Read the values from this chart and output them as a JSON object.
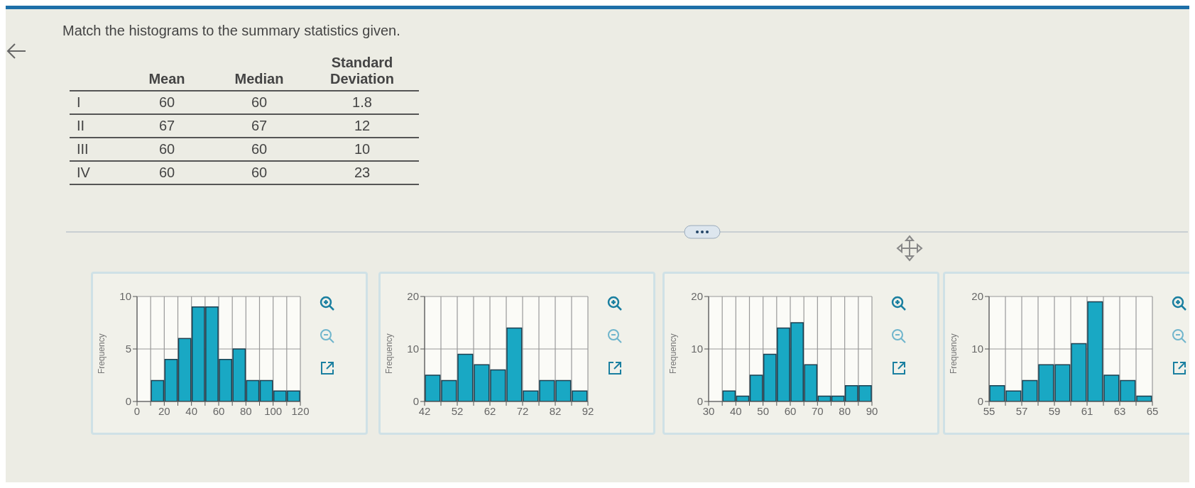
{
  "chart_data": [
    {
      "type": "other",
      "title": "Match the histograms to the summary statistics given.",
      "categories": [
        "I",
        "II",
        "III",
        "IV"
      ],
      "series": [
        {
          "name": "Mean",
          "values": [
            60,
            67,
            60,
            60
          ]
        },
        {
          "name": "Median",
          "values": [
            60,
            67,
            60,
            60
          ]
        },
        {
          "name": "Standard Deviation",
          "values": [
            1.8,
            12,
            10,
            23
          ]
        }
      ],
      "data_labels": true
    },
    {
      "type": "histogram",
      "ylabel": "Frequency",
      "color": "#19a8c4",
      "bins": [
        0,
        10,
        20,
        30,
        40,
        50,
        60,
        70,
        80,
        90,
        100,
        110,
        120
      ],
      "values": [
        0,
        2,
        4,
        6,
        9,
        9,
        4,
        5,
        2,
        2,
        1,
        1
      ],
      "xlim": [
        0,
        120
      ],
      "ylim": [
        0,
        10
      ],
      "xticks": [
        0,
        {
          "value": 10,
          "label": null
        },
        20,
        {
          "value": 30,
          "label": null
        },
        40,
        {
          "value": 50,
          "label": null
        },
        60,
        {
          "value": 70,
          "label": null
        },
        80,
        {
          "value": 90,
          "label": null
        },
        100,
        {
          "value": 110,
          "label": null
        },
        120
      ],
      "yticks": [
        0,
        5,
        10
      ],
      "grid": true
    },
    {
      "type": "histogram",
      "ylabel": "Frequency",
      "color": "#19a8c4",
      "bins": [
        42,
        47,
        52,
        57,
        62,
        67,
        72,
        77,
        82,
        87,
        92
      ],
      "values": [
        5,
        4,
        9,
        7,
        6,
        14,
        2,
        4,
        4,
        2
      ],
      "xlim": [
        42,
        92
      ],
      "ylim": [
        0,
        20
      ],
      "xticks": [
        42,
        {
          "value": 47,
          "label": null
        },
        52,
        {
          "value": 57,
          "label": null
        },
        62,
        {
          "value": 67,
          "label": null
        },
        72,
        {
          "value": 77,
          "label": null
        },
        82,
        {
          "value": 87,
          "label": null
        },
        92
      ],
      "yticks": [
        0,
        10,
        20
      ],
      "grid": true
    },
    {
      "type": "histogram",
      "ylabel": "Frequency",
      "color": "#19a8c4",
      "bins": [
        30,
        35,
        40,
        45,
        50,
        55,
        60,
        65,
        70,
        75,
        80,
        85,
        90
      ],
      "values": [
        0,
        2,
        1,
        5,
        9,
        14,
        15,
        7,
        1,
        1,
        3,
        3
      ],
      "xlim": [
        30,
        90
      ],
      "ylim": [
        0,
        20
      ],
      "xticks": [
        30,
        {
          "value": 35,
          "label": null
        },
        40,
        {
          "value": 45,
          "label": null
        },
        50,
        {
          "value": 55,
          "label": null
        },
        60,
        {
          "value": 65,
          "label": null
        },
        70,
        {
          "value": 75,
          "label": null
        },
        80,
        {
          "value": 85,
          "label": null
        },
        90
      ],
      "yticks": [
        0,
        10,
        20
      ],
      "grid": true
    },
    {
      "type": "histogram",
      "ylabel": "Frequency",
      "color": "#19a8c4",
      "bins": [
        55,
        56,
        57,
        58,
        59,
        60,
        61,
        62,
        63,
        64,
        65
      ],
      "values": [
        3,
        2,
        4,
        7,
        7,
        11,
        19,
        5,
        4,
        1
      ],
      "xlim": [
        55,
        65
      ],
      "ylim": [
        0,
        20
      ],
      "xticks": [
        55,
        {
          "value": 56,
          "label": null
        },
        57,
        {
          "value": 58,
          "label": null
        },
        59,
        {
          "value": 60,
          "label": null
        },
        61,
        {
          "value": 62,
          "label": null
        },
        63,
        {
          "value": 64,
          "label": null
        },
        65
      ],
      "yticks": [
        0,
        10,
        20
      ],
      "grid": true
    }
  ]
}
